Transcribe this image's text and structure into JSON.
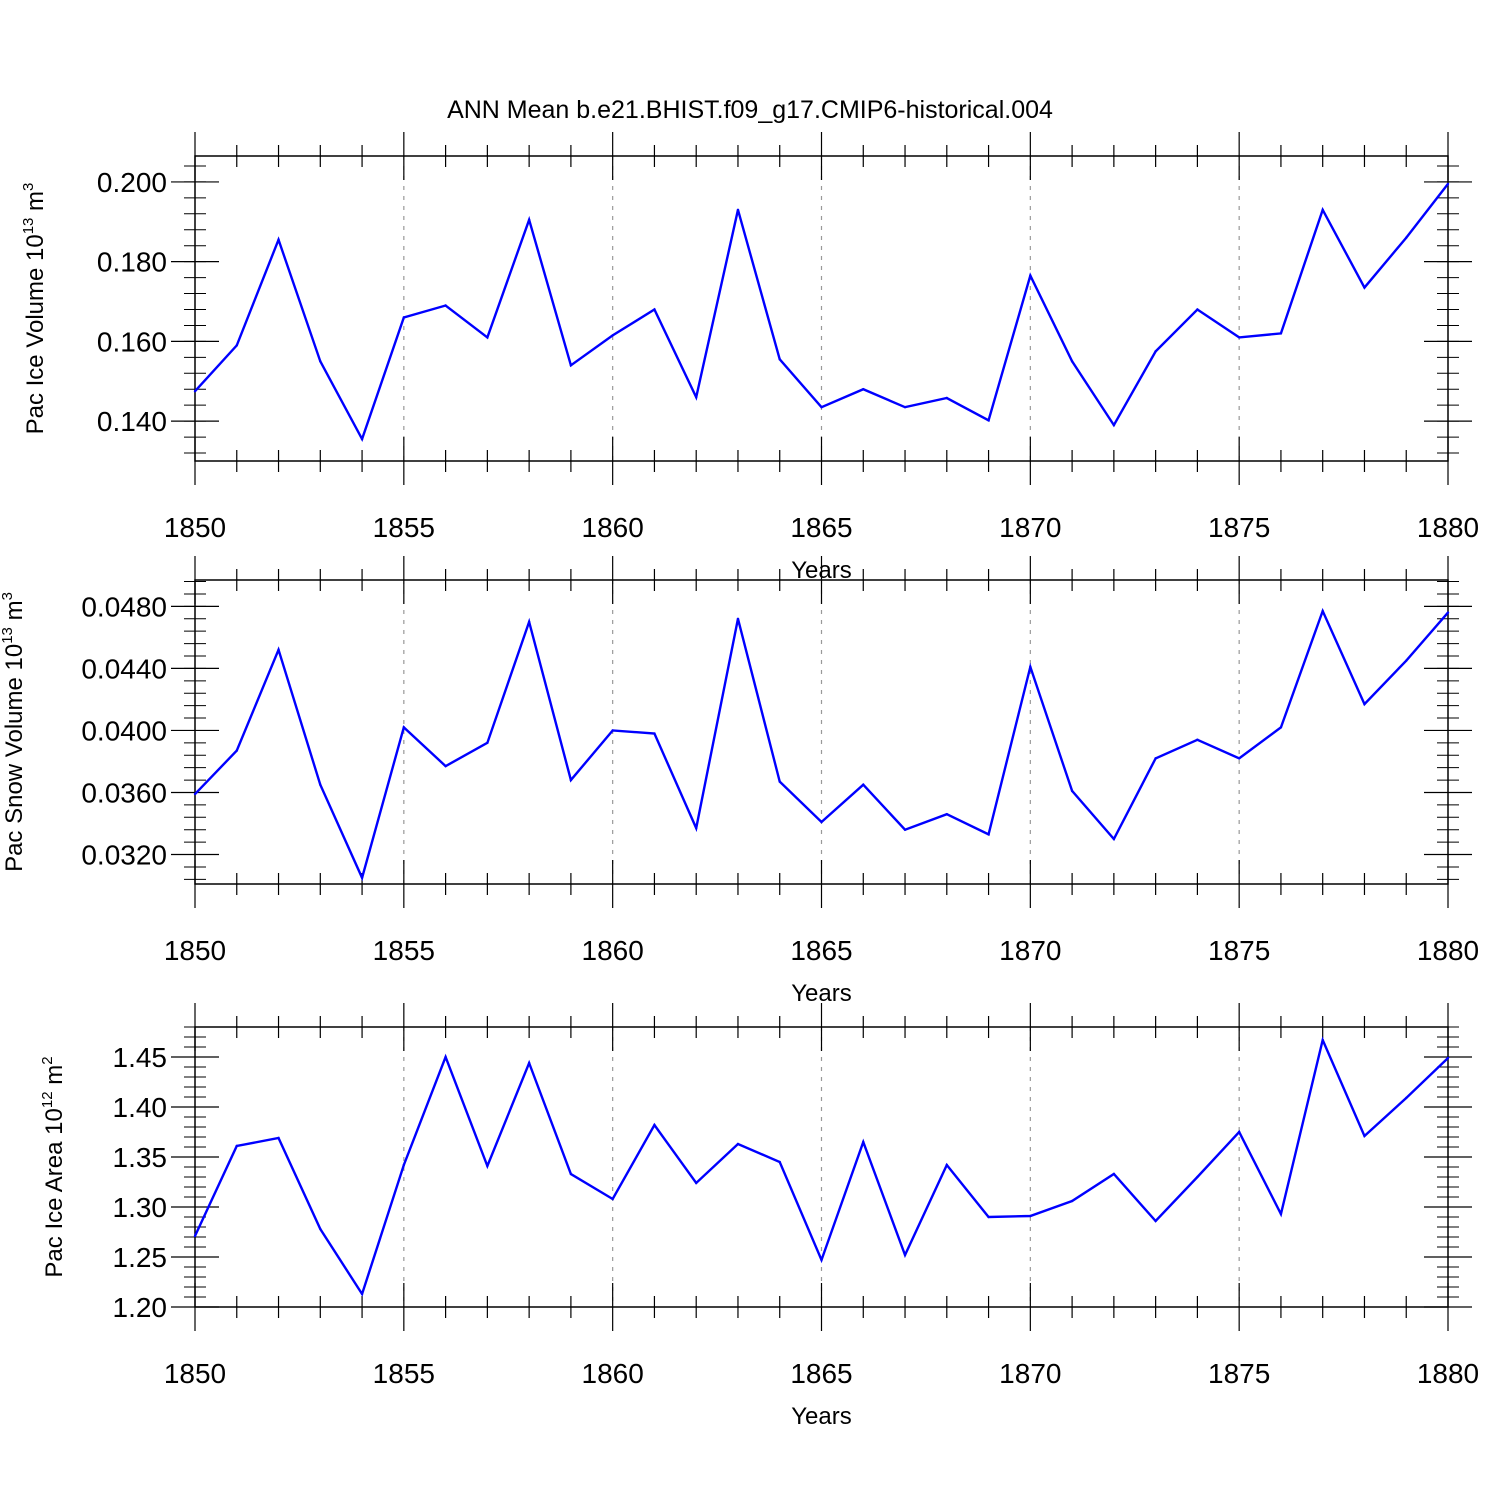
{
  "chart_data": {
    "type": "line",
    "title": "ANN Mean b.e21.BHIST.f09_g17.CMIP6-historical.004",
    "line_color": "#0000ff",
    "grid_color": "#999999",
    "panels": [
      {
        "ylabel_main": "Pac Ice Volume 10",
        "ylabel_sup": "13",
        "ylabel_unit": " m",
        "ylabel_unit_sup": "3",
        "xlabel": "Years",
        "xlim": [
          1850,
          1880
        ],
        "ylim": [
          0.13,
          0.2065
        ],
        "yticks": [
          0.14,
          0.16,
          0.18,
          0.2
        ],
        "ytick_labels": [
          "0.140",
          "0.160",
          "0.180",
          "0.200"
        ],
        "yminor_step": 0.004,
        "xticks": [
          1850,
          1855,
          1860,
          1865,
          1870,
          1875,
          1880
        ],
        "xtick_labels": [
          "1850",
          "1855",
          "1860",
          "1865",
          "1870",
          "1875",
          "1880"
        ],
        "x": [
          1850,
          1851,
          1852,
          1853,
          1854,
          1855,
          1856,
          1857,
          1858,
          1859,
          1860,
          1861,
          1862,
          1863,
          1864,
          1865,
          1866,
          1867,
          1868,
          1869,
          1870,
          1871,
          1872,
          1873,
          1874,
          1875,
          1876,
          1877,
          1878,
          1879,
          1880
        ],
        "values": [
          0.1475,
          0.159,
          0.1855,
          0.155,
          0.1355,
          0.166,
          0.169,
          0.161,
          0.1905,
          0.154,
          0.1615,
          0.168,
          0.146,
          0.193,
          0.1555,
          0.1435,
          0.148,
          0.1435,
          0.1458,
          0.1402,
          0.1765,
          0.155,
          0.139,
          0.1575,
          0.168,
          0.161,
          0.162,
          0.193,
          0.1735,
          0.186,
          0.1995
        ]
      },
      {
        "ylabel_main": "Pac Snow Volume 10",
        "ylabel_sup": "13",
        "ylabel_unit": " m",
        "ylabel_unit_sup": "3",
        "xlabel": "Years",
        "xlim": [
          1850,
          1880
        ],
        "ylim": [
          0.0301,
          0.0497
        ],
        "yticks": [
          0.032,
          0.036,
          0.04,
          0.044,
          0.048
        ],
        "ytick_labels": [
          "0.0320",
          "0.0360",
          "0.0400",
          "0.0440",
          "0.0480"
        ],
        "yminor_step": 0.0008,
        "xticks": [
          1850,
          1855,
          1860,
          1865,
          1870,
          1875,
          1880
        ],
        "xtick_labels": [
          "1850",
          "1855",
          "1860",
          "1865",
          "1870",
          "1875",
          "1880"
        ],
        "x": [
          1850,
          1851,
          1852,
          1853,
          1854,
          1855,
          1856,
          1857,
          1858,
          1859,
          1860,
          1861,
          1862,
          1863,
          1864,
          1865,
          1866,
          1867,
          1868,
          1869,
          1870,
          1871,
          1872,
          1873,
          1874,
          1875,
          1876,
          1877,
          1878,
          1879,
          1880
        ],
        "values": [
          0.0359,
          0.0387,
          0.0452,
          0.0365,
          0.0305,
          0.0402,
          0.0377,
          0.0392,
          0.047,
          0.0368,
          0.04,
          0.0398,
          0.0337,
          0.0472,
          0.0367,
          0.0341,
          0.0365,
          0.0336,
          0.0346,
          0.0333,
          0.0441,
          0.0361,
          0.033,
          0.0382,
          0.0394,
          0.0382,
          0.0402,
          0.0477,
          0.0417,
          0.0445,
          0.0476
        ]
      },
      {
        "ylabel_main": "Pac Ice Area 10",
        "ylabel_sup": "12",
        "ylabel_unit": " m",
        "ylabel_unit_sup": "2",
        "xlabel": "Years",
        "xlim": [
          1850,
          1880
        ],
        "ylim": [
          1.2,
          1.48
        ],
        "yticks": [
          1.2,
          1.25,
          1.3,
          1.35,
          1.4,
          1.45
        ],
        "ytick_labels": [
          "1.20",
          "1.25",
          "1.30",
          "1.35",
          "1.40",
          "1.45"
        ],
        "yminor_step": 0.01,
        "xticks": [
          1850,
          1855,
          1860,
          1865,
          1870,
          1875,
          1880
        ],
        "xtick_labels": [
          "1850",
          "1855",
          "1860",
          "1865",
          "1870",
          "1875",
          "1880"
        ],
        "x": [
          1850,
          1851,
          1852,
          1853,
          1854,
          1855,
          1856,
          1857,
          1858,
          1859,
          1860,
          1861,
          1862,
          1863,
          1864,
          1865,
          1866,
          1867,
          1868,
          1869,
          1870,
          1871,
          1872,
          1873,
          1874,
          1875,
          1876,
          1877,
          1878,
          1879,
          1880
        ],
        "values": [
          1.271,
          1.361,
          1.369,
          1.278,
          1.213,
          1.342,
          1.45,
          1.341,
          1.444,
          1.333,
          1.308,
          1.382,
          1.324,
          1.363,
          1.345,
          1.247,
          1.365,
          1.252,
          1.342,
          1.29,
          1.291,
          1.306,
          1.333,
          1.286,
          1.33,
          1.375,
          1.293,
          1.467,
          1.371,
          1.409,
          1.449
        ]
      }
    ]
  }
}
